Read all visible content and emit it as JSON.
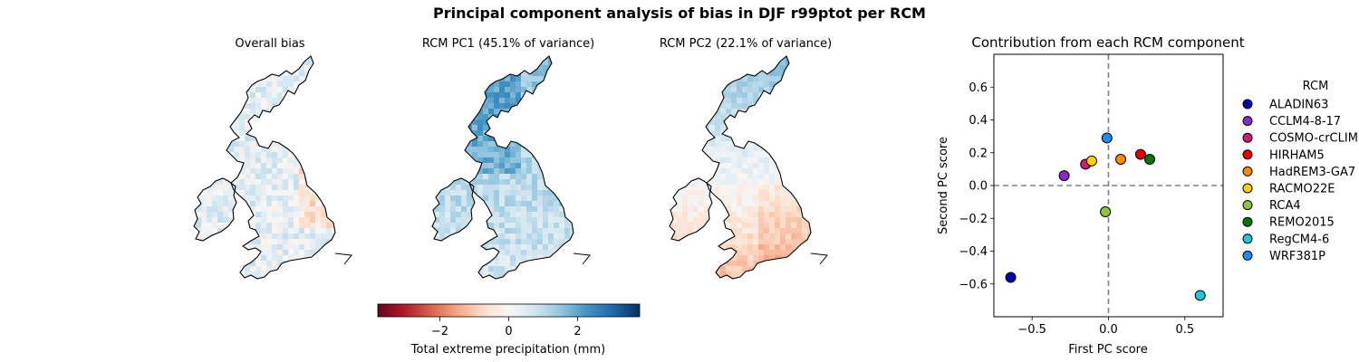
{
  "figure": {
    "title": "Principal component analysis of bias in DJF r99ptot per RCM"
  },
  "maps": [
    {
      "title": "Overall bias",
      "pattern": "overall"
    },
    {
      "title": "RCM PC1 (45.1% of variance)",
      "pattern": "pc1"
    },
    {
      "title": "RCM PC2 (22.1% of variance)",
      "pattern": "pc2"
    }
  ],
  "colorbar": {
    "label": "Total extreme precipitation (mm)",
    "colormap": "RdBu",
    "range": [
      -3.8,
      3.8
    ],
    "ticks": [
      "−2",
      "0",
      "2"
    ],
    "tick_values": [
      -2,
      0,
      2
    ],
    "colors": [
      "#67001f",
      "#b2182b",
      "#d6604d",
      "#f4a582",
      "#fddbc7",
      "#f7f7f7",
      "#d1e5f0",
      "#92c5de",
      "#4393c3",
      "#2166ac",
      "#053061"
    ]
  },
  "chart_data": {
    "type": "scatter",
    "title": "Contribution from each RCM component",
    "xlabel": "First PC score",
    "ylabel": "Second PC score",
    "xlim": [
      -0.75,
      0.75
    ],
    "ylim": [
      -0.8,
      0.8
    ],
    "xticks": [
      -0.5,
      0.0,
      0.5
    ],
    "xtick_labels": [
      "−0.5",
      "0.0",
      "0.5"
    ],
    "yticks": [
      -0.6,
      -0.4,
      -0.2,
      0.0,
      0.2,
      0.4,
      0.6
    ],
    "ytick_labels": [
      "−0.6",
      "−0.4",
      "−0.2",
      "0.0",
      "0.2",
      "0.4",
      "0.6"
    ],
    "reference_lines": {
      "x": 0,
      "y": 0,
      "style": "dashed",
      "color": "#808080"
    },
    "legend": {
      "title": "RCM",
      "placement": "outside-right"
    },
    "points": [
      {
        "name": "ALADIN63",
        "x": -0.64,
        "y": -0.56,
        "color": "#0000b4"
      },
      {
        "name": "CCLM4-8-17",
        "x": -0.29,
        "y": 0.06,
        "color": "#8b28c8"
      },
      {
        "name": "COSMO-crCLIM",
        "x": -0.15,
        "y": 0.13,
        "color": "#c81e78"
      },
      {
        "name": "HIRHAM5",
        "x": 0.21,
        "y": 0.19,
        "color": "#e60000"
      },
      {
        "name": "HadREM3-GA7",
        "x": 0.08,
        "y": 0.16,
        "color": "#ff8c00"
      },
      {
        "name": "RACMO22E",
        "x": -0.11,
        "y": 0.15,
        "color": "#ffd200"
      },
      {
        "name": "RCA4",
        "x": -0.02,
        "y": -0.16,
        "color": "#8cc83c"
      },
      {
        "name": "REMO2015",
        "x": 0.27,
        "y": 0.16,
        "color": "#007800"
      },
      {
        "name": "RegCM4-6",
        "x": 0.6,
        "y": -0.67,
        "color": "#1ec8d2"
      },
      {
        "name": "WRF381P",
        "x": -0.01,
        "y": 0.29,
        "color": "#1e8cf0"
      }
    ]
  }
}
